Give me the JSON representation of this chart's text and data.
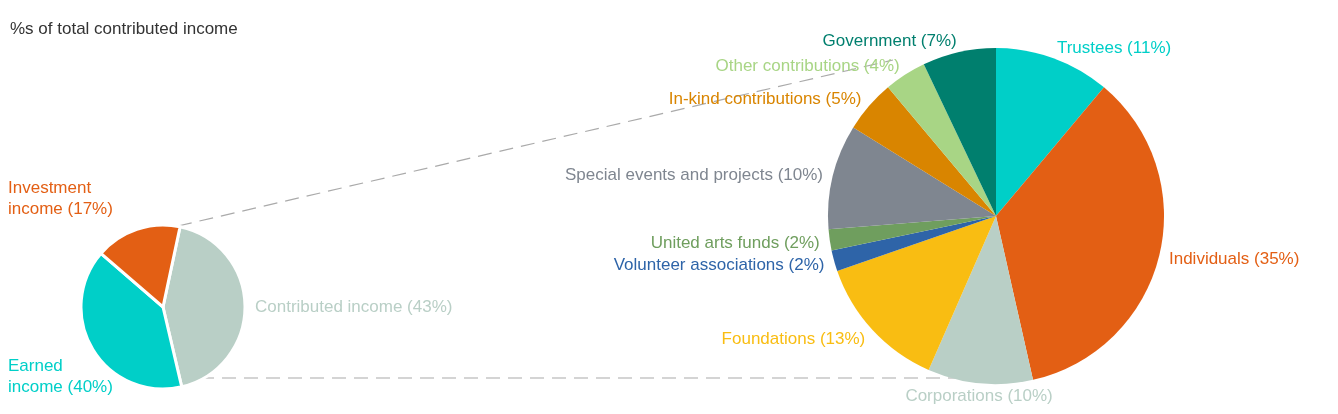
{
  "chart_data": [
    {
      "type": "pie",
      "subtitle": "%s of total contributed income",
      "categories": [
        "Contributed income (43%)",
        "Earned income (40%)",
        "Investment income (17%)"
      ],
      "values": [
        43,
        40,
        17
      ],
      "colors": [
        "#b9cfc6",
        "#00cfc8",
        "#e35f14"
      ]
    },
    {
      "type": "pie",
      "categories": [
        "Trustees (11%)",
        "Individuals (35%)",
        "Corporations (10%)",
        "Foundations (13%)",
        "Volunteer associations (2%)",
        "United arts funds (2%)",
        "Special events and projects (10%)",
        "In-kind contributions (5%)",
        "Other contributions (4%)",
        "Government (7%)"
      ],
      "values": [
        11,
        35,
        10,
        13,
        2,
        2,
        10,
        5,
        4,
        7
      ],
      "colors": [
        "#00cfc8",
        "#e35f14",
        "#b9cfc6",
        "#f9bd12",
        "#2e64a8",
        "#6f9e5e",
        "#7f8690",
        "#d98500",
        "#a8d585",
        "#007f6e"
      ]
    }
  ]
}
